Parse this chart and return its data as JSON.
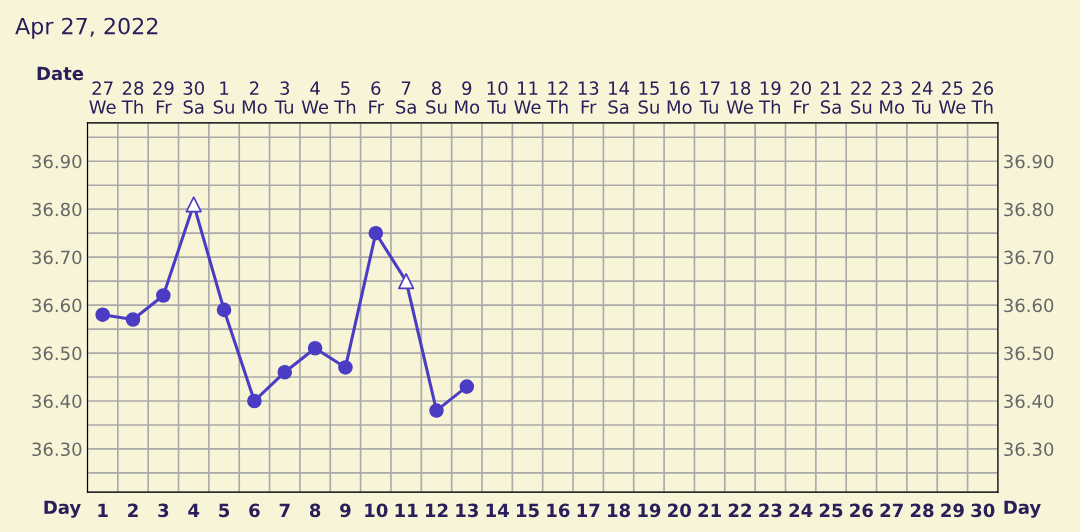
{
  "chart_data": {
    "type": "line",
    "title": "Apr 27, 2022",
    "xlabel": "Day",
    "x2label": "Date",
    "x": [
      1,
      2,
      3,
      4,
      5,
      6,
      7,
      8,
      9,
      10,
      11,
      12,
      13
    ],
    "series": [
      {
        "color": "#4b3cc4",
        "marker": "none",
        "values": [
          36.58,
          36.57,
          36.62,
          36.81,
          36.59,
          36.4,
          36.46,
          36.51,
          36.47,
          36.75,
          36.65,
          36.38,
          36.43
        ]
      },
      {
        "type": "scatter",
        "color": "#4b3cc4",
        "marker": "circle",
        "x": [
          1,
          2,
          3,
          5,
          6,
          7,
          8,
          9,
          10,
          12,
          13
        ],
        "values": [
          36.58,
          36.57,
          36.62,
          36.59,
          36.4,
          36.46,
          36.51,
          36.47,
          36.75,
          36.38,
          36.43
        ]
      },
      {
        "type": "scatter",
        "color": "#4b3cc4",
        "marker": "triangle",
        "x": [
          4,
          11
        ],
        "values": [
          36.81,
          36.65
        ]
      }
    ],
    "xlim": [
      0.5,
      30.5
    ],
    "xticks": [
      1,
      2,
      3,
      4,
      5,
      6,
      7,
      8,
      9,
      10,
      11,
      12,
      13,
      14,
      15,
      16,
      17,
      18,
      19,
      20,
      21,
      22,
      23,
      24,
      25,
      26,
      27,
      28,
      29,
      30
    ],
    "annotations": [
      "27\nWe",
      "28\nTh",
      "29\nFr",
      "30\nSa",
      "1\nSu",
      "2\nMo",
      "3\nTu",
      "4\nWe",
      "5\nTh",
      "6\nFr",
      "7\nSa",
      "8\nSu",
      "9\nMo",
      "10\nTu",
      "11\nWe",
      "12\nTh",
      "13\nFr",
      "14\nSa",
      "15\nSu",
      "16\nMo",
      "17\nTu",
      "18\nWe",
      "19\nTh",
      "20\nFr",
      "21\nSa",
      "22\nSu",
      "23\nMo",
      "24\nTu",
      "25\nWe",
      "26\nTh"
    ],
    "ylim": [
      36.21,
      36.98
    ],
    "yticks": [
      {
        "value": 36.3,
        "label": "36.30"
      },
      {
        "value": 36.4,
        "label": "36.40"
      },
      {
        "value": 36.5,
        "label": "36.50"
      },
      {
        "value": 36.6,
        "label": "36.60"
      },
      {
        "value": 36.7,
        "label": "36.70"
      },
      {
        "value": 36.8,
        "label": "36.80"
      },
      {
        "value": 36.9,
        "label": "36.90"
      }
    ],
    "y2lim": [
      36.21,
      36.98
    ],
    "y2ticks": [
      {
        "value": 36.3,
        "label": "36.30"
      },
      {
        "value": 36.4,
        "label": "36.40"
      },
      {
        "value": 36.5,
        "label": "36.50"
      },
      {
        "value": 36.6,
        "label": "36.60"
      },
      {
        "value": 36.7,
        "label": "36.70"
      },
      {
        "value": 36.8,
        "label": "36.80"
      },
      {
        "value": 36.9,
        "label": "36.90"
      }
    ],
    "grid": true,
    "line_style": "solid"
  }
}
